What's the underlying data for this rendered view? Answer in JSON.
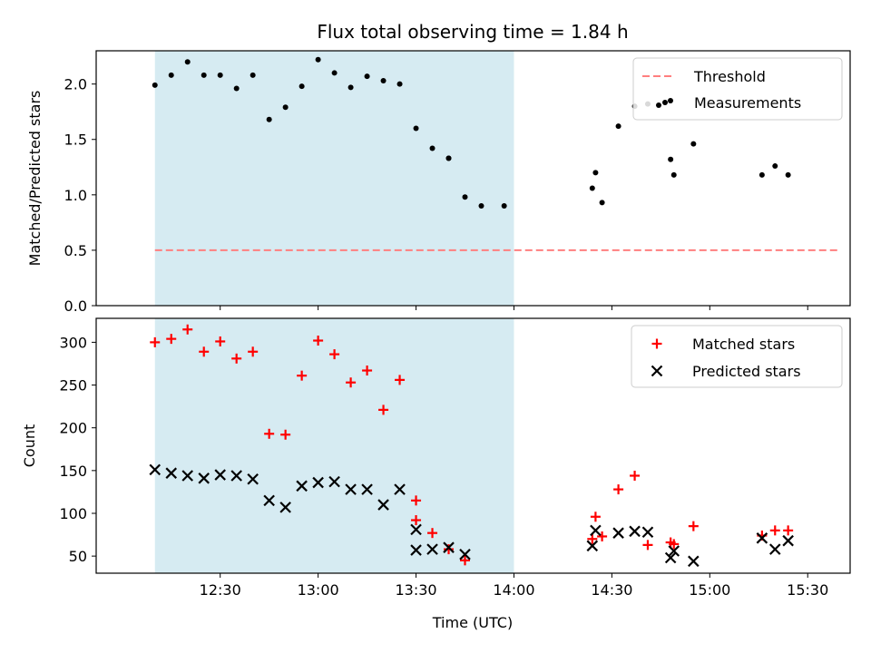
{
  "chart_data": {
    "title": "Flux total observing time = 1.84 h",
    "xlabel": "Time (UTC)",
    "x_unit": "minutes since 12:00 UTC",
    "xlim": [
      -8,
      223
    ],
    "x_ticks": [
      30,
      60,
      90,
      120,
      150,
      180,
      210
    ],
    "x_tick_labels": [
      "12:30",
      "13:00",
      "13:30",
      "14:00",
      "14:30",
      "15:00",
      "15:30"
    ],
    "shaded_interval": [
      10,
      120
    ],
    "shade_color": "#add8e6",
    "panels": [
      {
        "type": "scatter",
        "ylabel": "Matched/Predicted stars",
        "ylim": [
          0,
          2.3
        ],
        "y_ticks": [
          0.0,
          0.5,
          1.0,
          1.5,
          2.0
        ],
        "y_tick_labels": [
          "0.0",
          "0.5",
          "1.0",
          "1.5",
          "2.0"
        ],
        "legend": {
          "position": "upper right"
        },
        "series": [
          {
            "name": "Threshold",
            "kind": "hline",
            "color": "#ff7f7f",
            "x": [
              10,
              220
            ],
            "y": [
              0.5,
              0.5
            ]
          },
          {
            "name": "Measurements",
            "kind": "dots",
            "color": "#000000",
            "x": [
              10,
              15,
              20,
              25,
              30,
              35,
              40,
              45,
              50,
              55,
              60,
              65,
              70,
              75,
              80,
              85,
              90,
              95,
              100,
              100,
              105,
              110,
              117,
              144,
              145,
              147,
              152,
              157,
              161,
              168,
              169,
              175,
              196,
              200,
              204
            ],
            "y": [
              1.99,
              2.08,
              2.2,
              2.08,
              2.08,
              1.96,
              2.08,
              1.68,
              1.79,
              1.98,
              2.22,
              2.1,
              1.97,
              2.07,
              2.03,
              2.0,
              1.6,
              1.42,
              1.33,
              1.33,
              0.98,
              0.9,
              0.9,
              1.06,
              1.2,
              0.93,
              1.62,
              1.8,
              1.82,
              1.32,
              1.18,
              1.46,
              1.18,
              1.26,
              1.18
            ]
          }
        ]
      },
      {
        "type": "scatter",
        "ylabel": "Count",
        "ylim": [
          30,
          328
        ],
        "y_ticks": [
          50,
          100,
          150,
          200,
          250,
          300
        ],
        "y_tick_labels": [
          "50",
          "100",
          "150",
          "200",
          "250",
          "300"
        ],
        "legend": {
          "position": "upper right"
        },
        "series": [
          {
            "name": "Matched stars",
            "kind": "plus",
            "color": "#ff0000",
            "x": [
              10,
              15,
              20,
              25,
              30,
              35,
              40,
              45,
              50,
              55,
              60,
              65,
              70,
              75,
              80,
              85,
              90,
              90,
              95,
              100,
              105,
              144,
              145,
              147,
              152,
              157,
              161,
              168,
              169,
              175,
              196,
              200,
              204
            ],
            "y": [
              300,
              304,
              315,
              289,
              301,
              281,
              289,
              193,
              192,
              261,
              302,
              286,
              253,
              267,
              221,
              256,
              115,
              92,
              77,
              58,
              45,
              70,
              96,
              73,
              128,
              144,
              63,
              66,
              64,
              85,
              74,
              80,
              80
            ]
          },
          {
            "name": "Predicted stars",
            "kind": "x",
            "color": "#000000",
            "x": [
              10,
              15,
              20,
              25,
              30,
              35,
              40,
              45,
              50,
              55,
              60,
              65,
              70,
              75,
              80,
              85,
              90,
              90,
              95,
              100,
              105,
              144,
              145,
              152,
              157,
              161,
              168,
              169,
              175,
              196,
              200,
              204
            ],
            "y": [
              151,
              147,
              144,
              141,
              145,
              144,
              140,
              115,
              107,
              132,
              136,
              137,
              128,
              128,
              110,
              128,
              81,
              57,
              58,
              60,
              52,
              62,
              80,
              77,
              79,
              78,
              48,
              56,
              44,
              71,
              58,
              68
            ]
          }
        ]
      }
    ]
  }
}
